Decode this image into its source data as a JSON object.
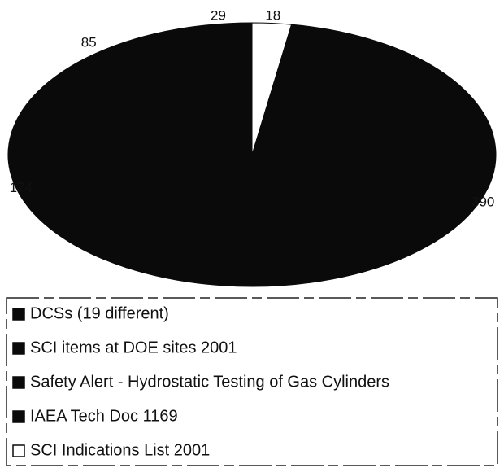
{
  "chart_data": {
    "type": "pie",
    "categories": [
      "DCSs (19 different)",
      "SCI items at DOE sites 2001",
      "Safety Alert - Hydrostatic Testing of Gas Cylinders",
      "IAEA Tech Doc 1169",
      "SCI Indications List 2001"
    ],
    "values": [
      390,
      174,
      85,
      29,
      18
    ],
    "colors": [
      "#0a0a0a",
      "#0a0a0a",
      "#0a0a0a",
      "#0a0a0a",
      "#ffffff"
    ]
  }
}
